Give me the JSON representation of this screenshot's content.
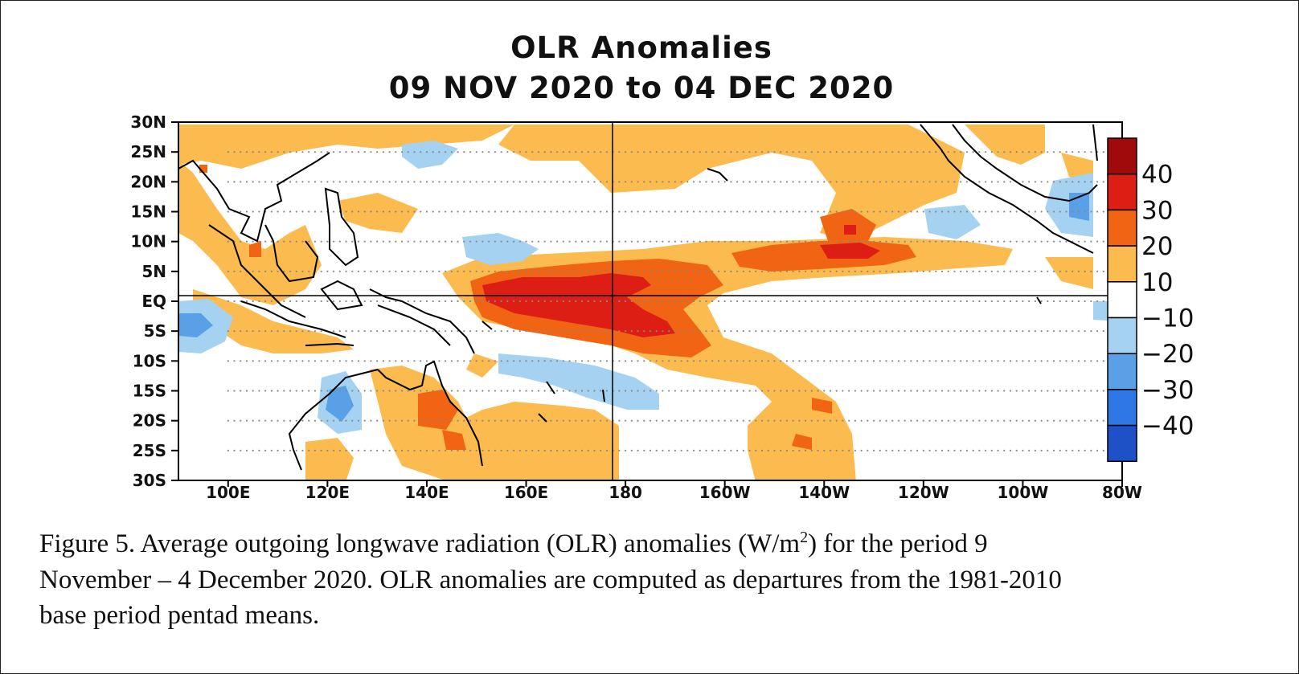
{
  "figure": {
    "title_line1": "OLR Anomalies",
    "title_line2": "09 NOV 2020 to 04 DEC 2020"
  },
  "map": {
    "lat_ticks": [
      "30N",
      "25N",
      "20N",
      "15N",
      "10N",
      "5N",
      "EQ",
      "5S",
      "10S",
      "15S",
      "20S",
      "25S",
      "30S"
    ],
    "lon_ticks": [
      "100E",
      "120E",
      "140E",
      "160E",
      "180",
      "160W",
      "140W",
      "120W",
      "100W",
      "80W"
    ],
    "lat_range": [
      -30,
      30
    ],
    "lon_range": [
      90,
      280
    ],
    "colors": {
      "pos_10_20": "#fbbb4f",
      "pos_20_30": "#f06414",
      "pos_30_40": "#dc1e14",
      "pos_40": "#a00a0a",
      "neg_10_20": "#a6d2f2",
      "neg_20_30": "#5aa0e6",
      "neg_30_40": "#2d78e6",
      "neg_40": "#1e50c8"
    }
  },
  "colorbar": {
    "labels": [
      "40",
      "30",
      "20",
      "10",
      "−10",
      "−20",
      "−30",
      "−40"
    ]
  },
  "caption": {
    "line1_a": "Figure  5. Average outgoing  longwave  radiation  (OLR) anomalies  (W/m",
    "line1_sup": "2",
    "line1_b": ")  for the period  9",
    "line2": "November – 4 December 2020.  OLR anomalies  are computed as departures from the 1981-2010",
    "line3": "base period  pentad means."
  }
}
